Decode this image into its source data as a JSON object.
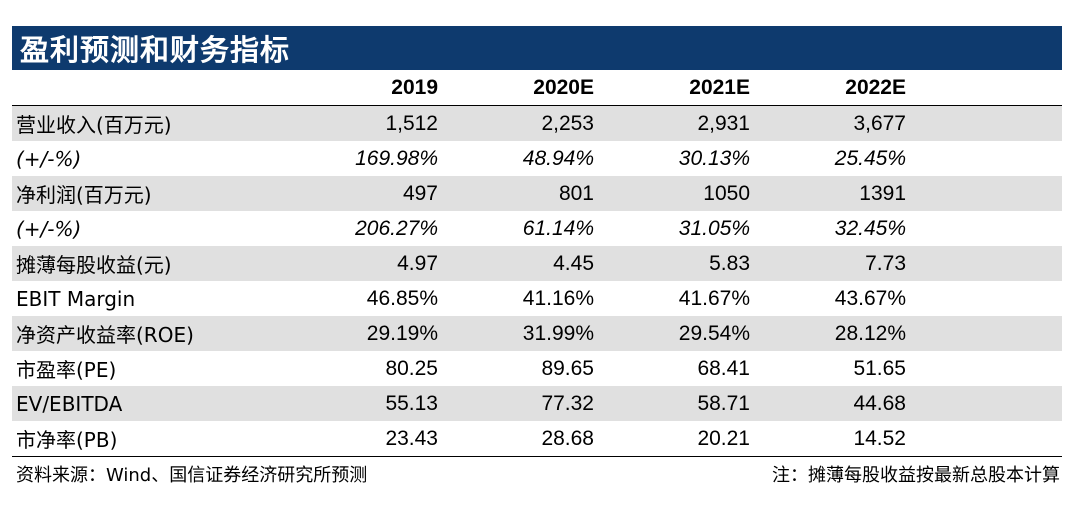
{
  "title": "盈利预测和财务指标",
  "columns": [
    "",
    "2019",
    "2020E",
    "2021E",
    "2022E",
    ""
  ],
  "rows": [
    {
      "label": "营业收入(百万元)",
      "values": [
        "1,512",
        "2,253",
        "2,931",
        "3,677"
      ],
      "italic": false
    },
    {
      "label": "(+/-%)",
      "values": [
        "169.98%",
        "48.94%",
        "30.13%",
        "25.45%"
      ],
      "italic": true
    },
    {
      "label": "净利润(百万元)",
      "values": [
        "497",
        "801",
        "1050",
        "1391"
      ],
      "italic": false
    },
    {
      "label": "(+/-%)",
      "values": [
        "206.27%",
        "61.14%",
        "31.05%",
        "32.45%"
      ],
      "italic": true
    },
    {
      "label": "摊薄每股收益(元)",
      "values": [
        "4.97",
        "4.45",
        "5.83",
        "7.73"
      ],
      "italic": false
    },
    {
      "label": "EBIT Margin",
      "values": [
        "46.85%",
        "41.16%",
        "41.67%",
        "43.67%"
      ],
      "italic": false
    },
    {
      "label": "净资产收益率(ROE)",
      "values": [
        "29.19%",
        "31.99%",
        "29.54%",
        "28.12%"
      ],
      "italic": false
    },
    {
      "label": "市盈率(PE)",
      "values": [
        "80.25",
        "89.65",
        "68.41",
        "51.65"
      ],
      "italic": false
    },
    {
      "label": "EV/EBITDA",
      "values": [
        "55.13",
        "77.32",
        "58.71",
        "44.68"
      ],
      "italic": false
    },
    {
      "label": "市净率(PB)",
      "values": [
        "23.43",
        "28.68",
        "20.21",
        "14.52"
      ],
      "italic": false
    }
  ],
  "footer": {
    "source": "资料来源：Wind、国信证券经济研究所预测",
    "note": "注：摊薄每股收益按最新总股本计算"
  }
}
